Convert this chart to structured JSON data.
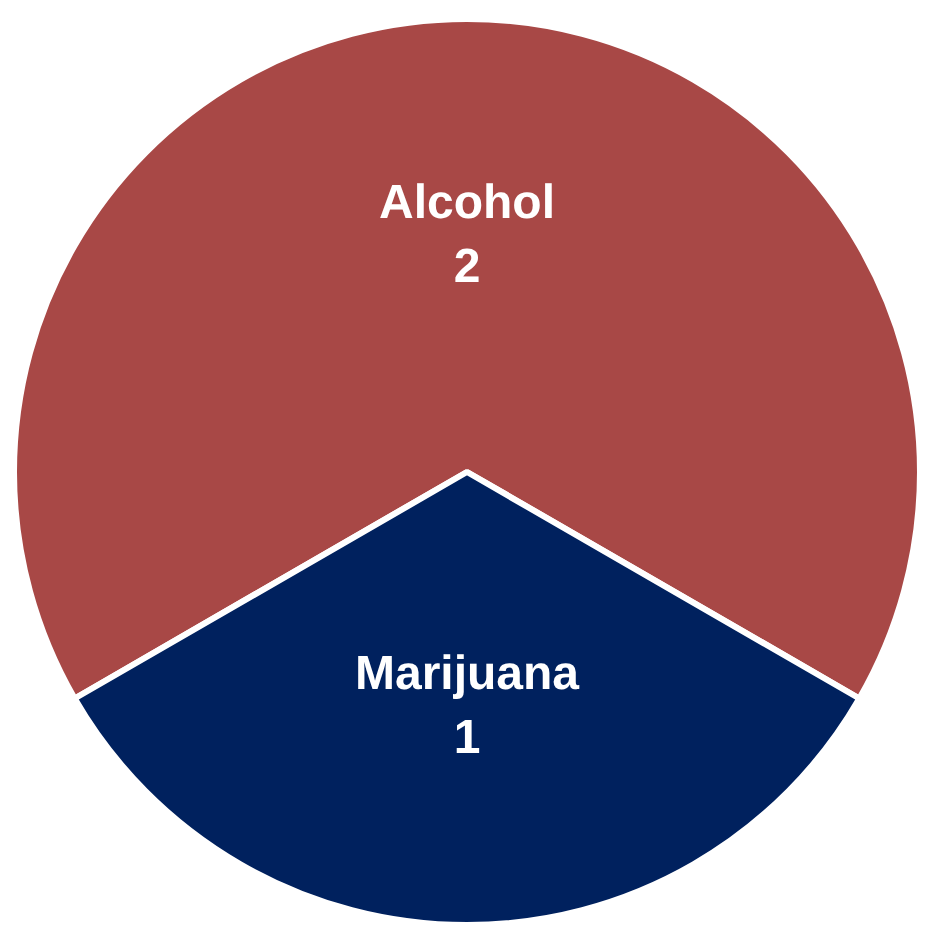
{
  "chart_data": {
    "type": "pie",
    "categories": [
      "Alcohol",
      "Marijuana"
    ],
    "values": [
      2,
      1
    ],
    "colors": [
      "#a84846",
      "#00215e"
    ],
    "data_labels": true,
    "legend": false
  }
}
